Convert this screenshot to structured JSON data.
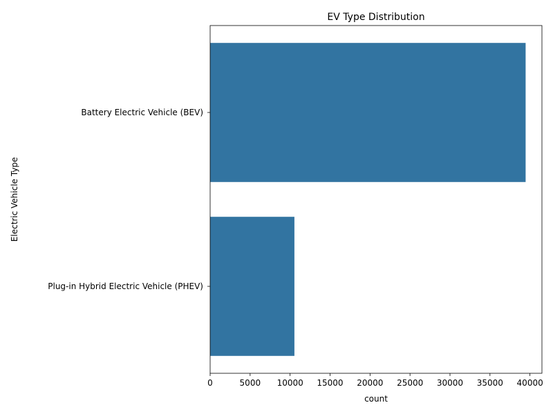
{
  "chart_data": {
    "type": "bar",
    "orientation": "horizontal",
    "title": "EV Type Distribution",
    "xlabel": "count",
    "ylabel": "Electric Vehicle Type",
    "categories": [
      "Battery Electric Vehicle (BEV)",
      "Plug-in Hybrid Electric Vehicle (PHEV)"
    ],
    "values": [
      39460,
      10540
    ],
    "xlim": [
      0,
      41500
    ],
    "xticks": [
      0,
      5000,
      10000,
      15000,
      20000,
      25000,
      30000,
      35000,
      40000
    ],
    "grid": false,
    "bar_color": "#3274a1"
  }
}
